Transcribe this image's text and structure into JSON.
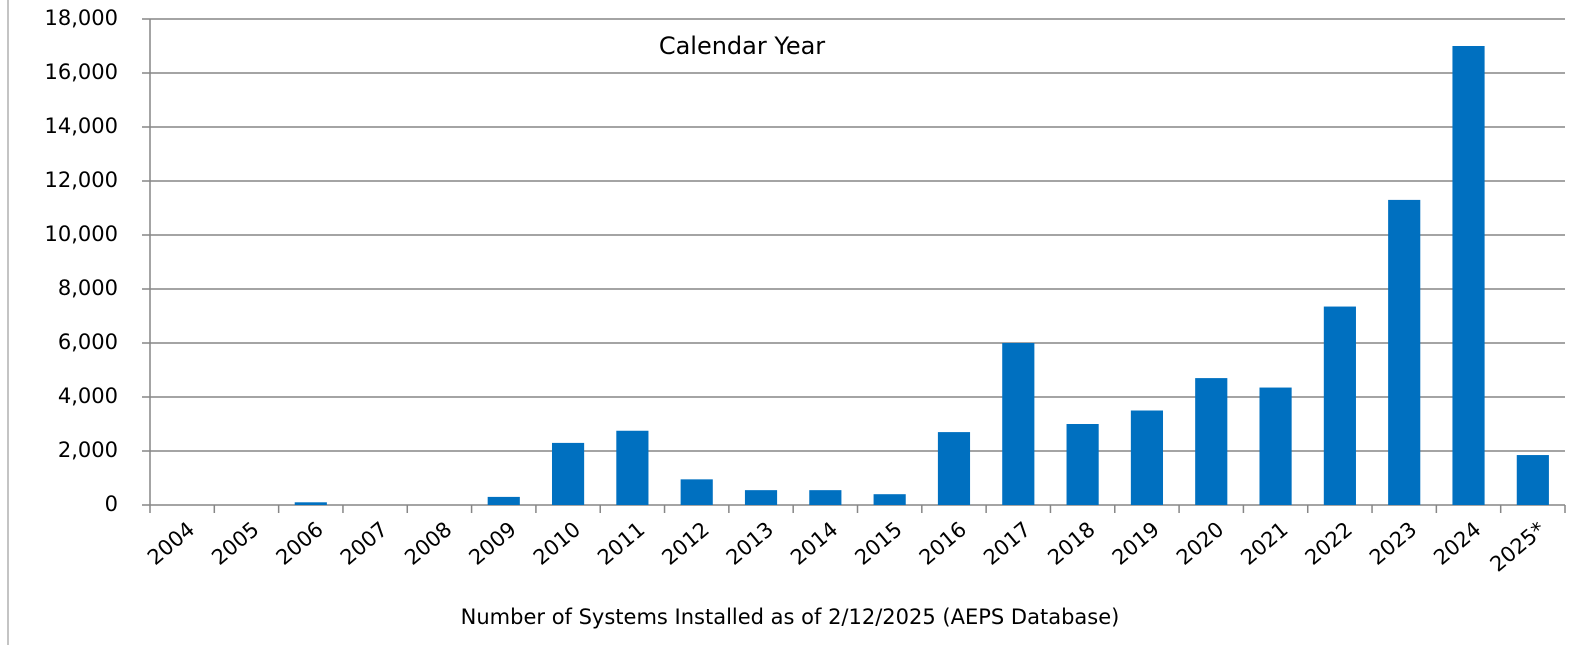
{
  "chart_data": {
    "type": "bar",
    "title": "Calendar Year",
    "x_label": "Number of Systems Installed as of 2/12/2025 (AEPS Database)",
    "categories": [
      "2004",
      "2005",
      "2006",
      "2007",
      "2008",
      "2009",
      "2010",
      "2011",
      "2012",
      "2013",
      "2014",
      "2015",
      "2016",
      "2017",
      "2018",
      "2019",
      "2020",
      "2021",
      "2022",
      "2023",
      "2024",
      "2025*"
    ],
    "values": [
      0,
      0,
      100,
      0,
      0,
      300,
      2300,
      2750,
      950,
      550,
      550,
      400,
      2700,
      6000,
      3000,
      3500,
      4700,
      4350,
      7350,
      11300,
      17000,
      1850
    ],
    "color": "#0070c0",
    "ylim": [
      0,
      18000
    ],
    "yticks": [
      0,
      {
        "value": 2000,
        "label": "2,000"
      },
      {
        "value": 4000,
        "label": "4,000"
      },
      {
        "value": 6000,
        "label": "6,000"
      },
      {
        "value": 8000,
        "label": "8,000"
      },
      {
        "value": 10000,
        "label": "10,000"
      },
      {
        "value": 12000,
        "label": "12,000"
      },
      {
        "value": 14000,
        "label": "14,000"
      },
      {
        "value": 16000,
        "label": "16,000"
      },
      {
        "value": 18000,
        "label": "18,000"
      }
    ],
    "grid": true
  }
}
